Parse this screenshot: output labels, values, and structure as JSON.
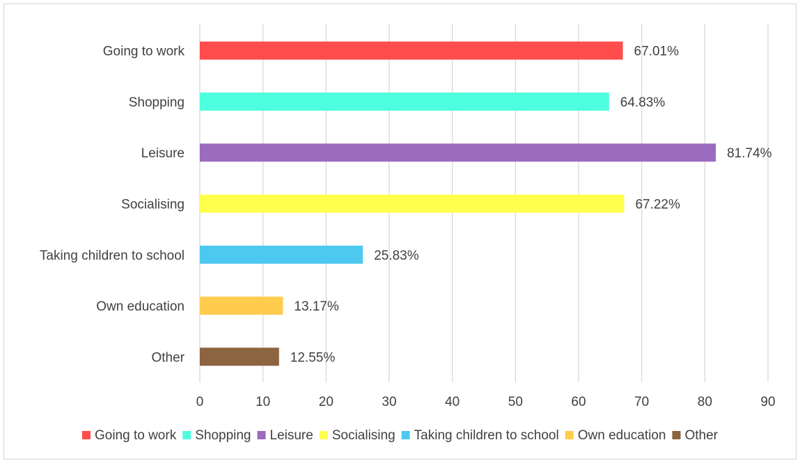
{
  "chart_data": {
    "type": "bar",
    "orientation": "horizontal",
    "title": "",
    "xlabel": "",
    "ylabel": "",
    "categories": [
      "Going to work",
      "Shopping",
      "Leisure",
      "Socialising",
      "Taking children to school",
      "Own education",
      "Other"
    ],
    "values": [
      67.01,
      64.83,
      81.74,
      67.22,
      25.83,
      13.17,
      12.55
    ],
    "data_labels": [
      "67.01%",
      "64.83%",
      "81.74%",
      "67.22%",
      "25.83%",
      "13.17%",
      "12.55%"
    ],
    "colors": [
      "#ff4c4c",
      "#4dffdf",
      "#9b6bbf",
      "#ffff4d",
      "#4dc8f0",
      "#ffcc4d",
      "#8c6440"
    ],
    "xlim": [
      0,
      90
    ],
    "xticks": [
      0,
      10,
      20,
      30,
      40,
      50,
      60,
      70,
      80,
      90
    ],
    "grid": "vertical",
    "legend": {
      "position": "bottom",
      "entries": [
        "Going to work",
        "Shopping",
        "Leisure",
        "Socialising",
        "Taking children to school",
        "Own education",
        "Other"
      ]
    }
  }
}
